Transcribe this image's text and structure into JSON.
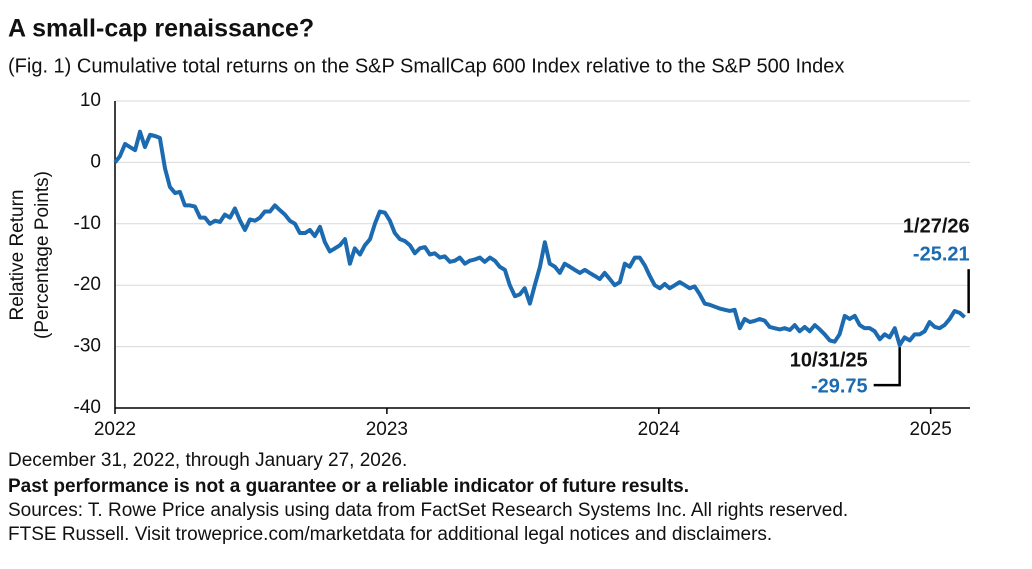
{
  "chart_data": {
    "type": "line",
    "title": "A small-cap renaissance?",
    "subtitle": "(Fig. 1) Cumulative total returns on the S&P SmallCap 600 Index relative to the S&P 500 Index",
    "ylabel": [
      "Relative Return",
      "(Percentage Points)"
    ],
    "xlim": [
      2022,
      2025.13
    ],
    "xticks": [
      2022,
      2023,
      2024,
      2025
    ],
    "ylim": [
      -40,
      10
    ],
    "yticks": [
      -40,
      -30,
      -20,
      -10,
      0,
      10
    ],
    "grid": true,
    "x": [
      2022.0,
      2022.018,
      2022.037,
      2022.055,
      2022.074,
      2022.092,
      2022.11,
      2022.129,
      2022.147,
      2022.165,
      2022.184,
      2022.202,
      2022.221,
      2022.239,
      2022.257,
      2022.276,
      2022.294,
      2022.313,
      2022.331,
      2022.349,
      2022.368,
      2022.386,
      2022.404,
      2022.423,
      2022.441,
      2022.46,
      2022.478,
      2022.496,
      2022.515,
      2022.533,
      2022.551,
      2022.57,
      2022.588,
      2022.607,
      2022.625,
      2022.643,
      2022.662,
      2022.68,
      2022.699,
      2022.717,
      2022.735,
      2022.754,
      2022.772,
      2022.79,
      2022.809,
      2022.827,
      2022.846,
      2022.864,
      2022.882,
      2022.901,
      2022.919,
      2022.938,
      2022.956,
      2022.974,
      2022.993,
      2023.011,
      2023.029,
      2023.048,
      2023.066,
      2023.085,
      2023.103,
      2023.121,
      2023.14,
      2023.158,
      2023.176,
      2023.195,
      2023.213,
      2023.232,
      2023.25,
      2023.268,
      2023.287,
      2023.305,
      2023.324,
      2023.342,
      2023.36,
      2023.379,
      2023.397,
      2023.415,
      2023.434,
      2023.452,
      2023.471,
      2023.489,
      2023.507,
      2023.526,
      2023.544,
      2023.563,
      2023.581,
      2023.599,
      2023.618,
      2023.636,
      2023.654,
      2023.673,
      2023.691,
      2023.71,
      2023.728,
      2023.746,
      2023.765,
      2023.783,
      2023.801,
      2023.82,
      2023.838,
      2023.857,
      2023.875,
      2023.893,
      2023.912,
      2023.93,
      2023.949,
      2023.967,
      2023.985,
      2024.004,
      2024.022,
      2024.04,
      2024.059,
      2024.077,
      2024.096,
      2024.114,
      2024.132,
      2024.151,
      2024.169,
      2024.188,
      2024.206,
      2024.224,
      2024.243,
      2024.261,
      2024.279,
      2024.298,
      2024.316,
      2024.335,
      2024.353,
      2024.371,
      2024.39,
      2024.408,
      2024.426,
      2024.445,
      2024.463,
      2024.482,
      2024.5,
      2024.518,
      2024.537,
      2024.555,
      2024.574,
      2024.592,
      2024.61,
      2024.629,
      2024.647,
      2024.665,
      2024.684,
      2024.702,
      2024.721,
      2024.739,
      2024.757,
      2024.776,
      2024.794,
      2024.813,
      2024.831,
      2024.849,
      2024.868,
      2024.886,
      2024.904,
      2024.923,
      2024.941,
      2024.96,
      2024.978,
      2024.996,
      2025.015,
      2025.033,
      2025.051,
      2025.07,
      2025.088,
      2025.107,
      2025.125
    ],
    "series": [
      {
        "name": "Relative return",
        "color": "#1c6bb0",
        "values": [
          0,
          1,
          3,
          2.5,
          2,
          5,
          2.5,
          4.5,
          4.3,
          4,
          -1,
          -4,
          -5,
          -4.8,
          -7,
          -7,
          -7.2,
          -9,
          -9,
          -10,
          -9.5,
          -9.7,
          -8.5,
          -9,
          -7.5,
          -9.5,
          -11,
          -9.3,
          -9.5,
          -9,
          -8,
          -8,
          -7,
          -7.8,
          -8.5,
          -9.5,
          -10,
          -11.5,
          -11.5,
          -11,
          -12,
          -10.5,
          -13,
          -14.5,
          -14,
          -13.5,
          -12.5,
          -16.5,
          -14,
          -15,
          -13.5,
          -12.5,
          -10,
          -8,
          -8.2,
          -9.5,
          -11.5,
          -12.5,
          -12.8,
          -13.5,
          -14.8,
          -14,
          -13.8,
          -15,
          -14.8,
          -15.5,
          -15.3,
          -16.2,
          -16,
          -15.5,
          -16.5,
          -16,
          -15.8,
          -15.5,
          -16.2,
          -15.5,
          -16,
          -17,
          -17.5,
          -20,
          -21.8,
          -21.5,
          -20.5,
          -23,
          -20,
          -17,
          -13,
          -16.5,
          -17,
          -18,
          -16.5,
          -17,
          -17.5,
          -18,
          -17.5,
          -18,
          -18.5,
          -19,
          -18,
          -19,
          -20,
          -19.5,
          -16.5,
          -17,
          -15.5,
          -15.5,
          -16.8,
          -18.5,
          -20,
          -20.5,
          -19.8,
          -20.5,
          -20,
          -19.5,
          -20,
          -20.5,
          -20.2,
          -21.5,
          -23,
          -23.2,
          -23.5,
          -23.8,
          -24,
          -24.2,
          -24,
          -27,
          -25.5,
          -26,
          -25.8,
          -25.5,
          -25.8,
          -26.8,
          -27,
          -27.2,
          -27,
          -27.3,
          -26.5,
          -27.5,
          -26.8,
          -27.5,
          -26.5,
          -27.2,
          -28,
          -29,
          -29.2,
          -28,
          -25,
          -25.5,
          -25,
          -26.5,
          -27,
          -27,
          -27.5,
          -28.8,
          -28,
          -28.5,
          -27,
          -29.75,
          -28.5,
          -29,
          -28,
          -28,
          -27.5,
          -26,
          -26.8,
          -27,
          -26.5,
          -25.5,
          -24.2,
          -24.5,
          -25.21
        ]
      }
    ],
    "annotations": [
      {
        "text": "1/27/26",
        "x": 2025.125,
        "y": -25.21
      },
      {
        "text": "10/31/25",
        "x": 2024.886,
        "y": -29.75
      }
    ],
    "footnotes": [
      "December 31, 2022, through January 27, 2026.",
      "Past performance is not a guarantee or a reliable indicator of future results.",
      "Sources: T. Rowe Price analysis using data from FactSet Research Systems Inc. All rights reserved.",
      "FTSE Russell. Visit troweprice.com/marketdata for additional legal notices and disclaimers."
    ]
  }
}
